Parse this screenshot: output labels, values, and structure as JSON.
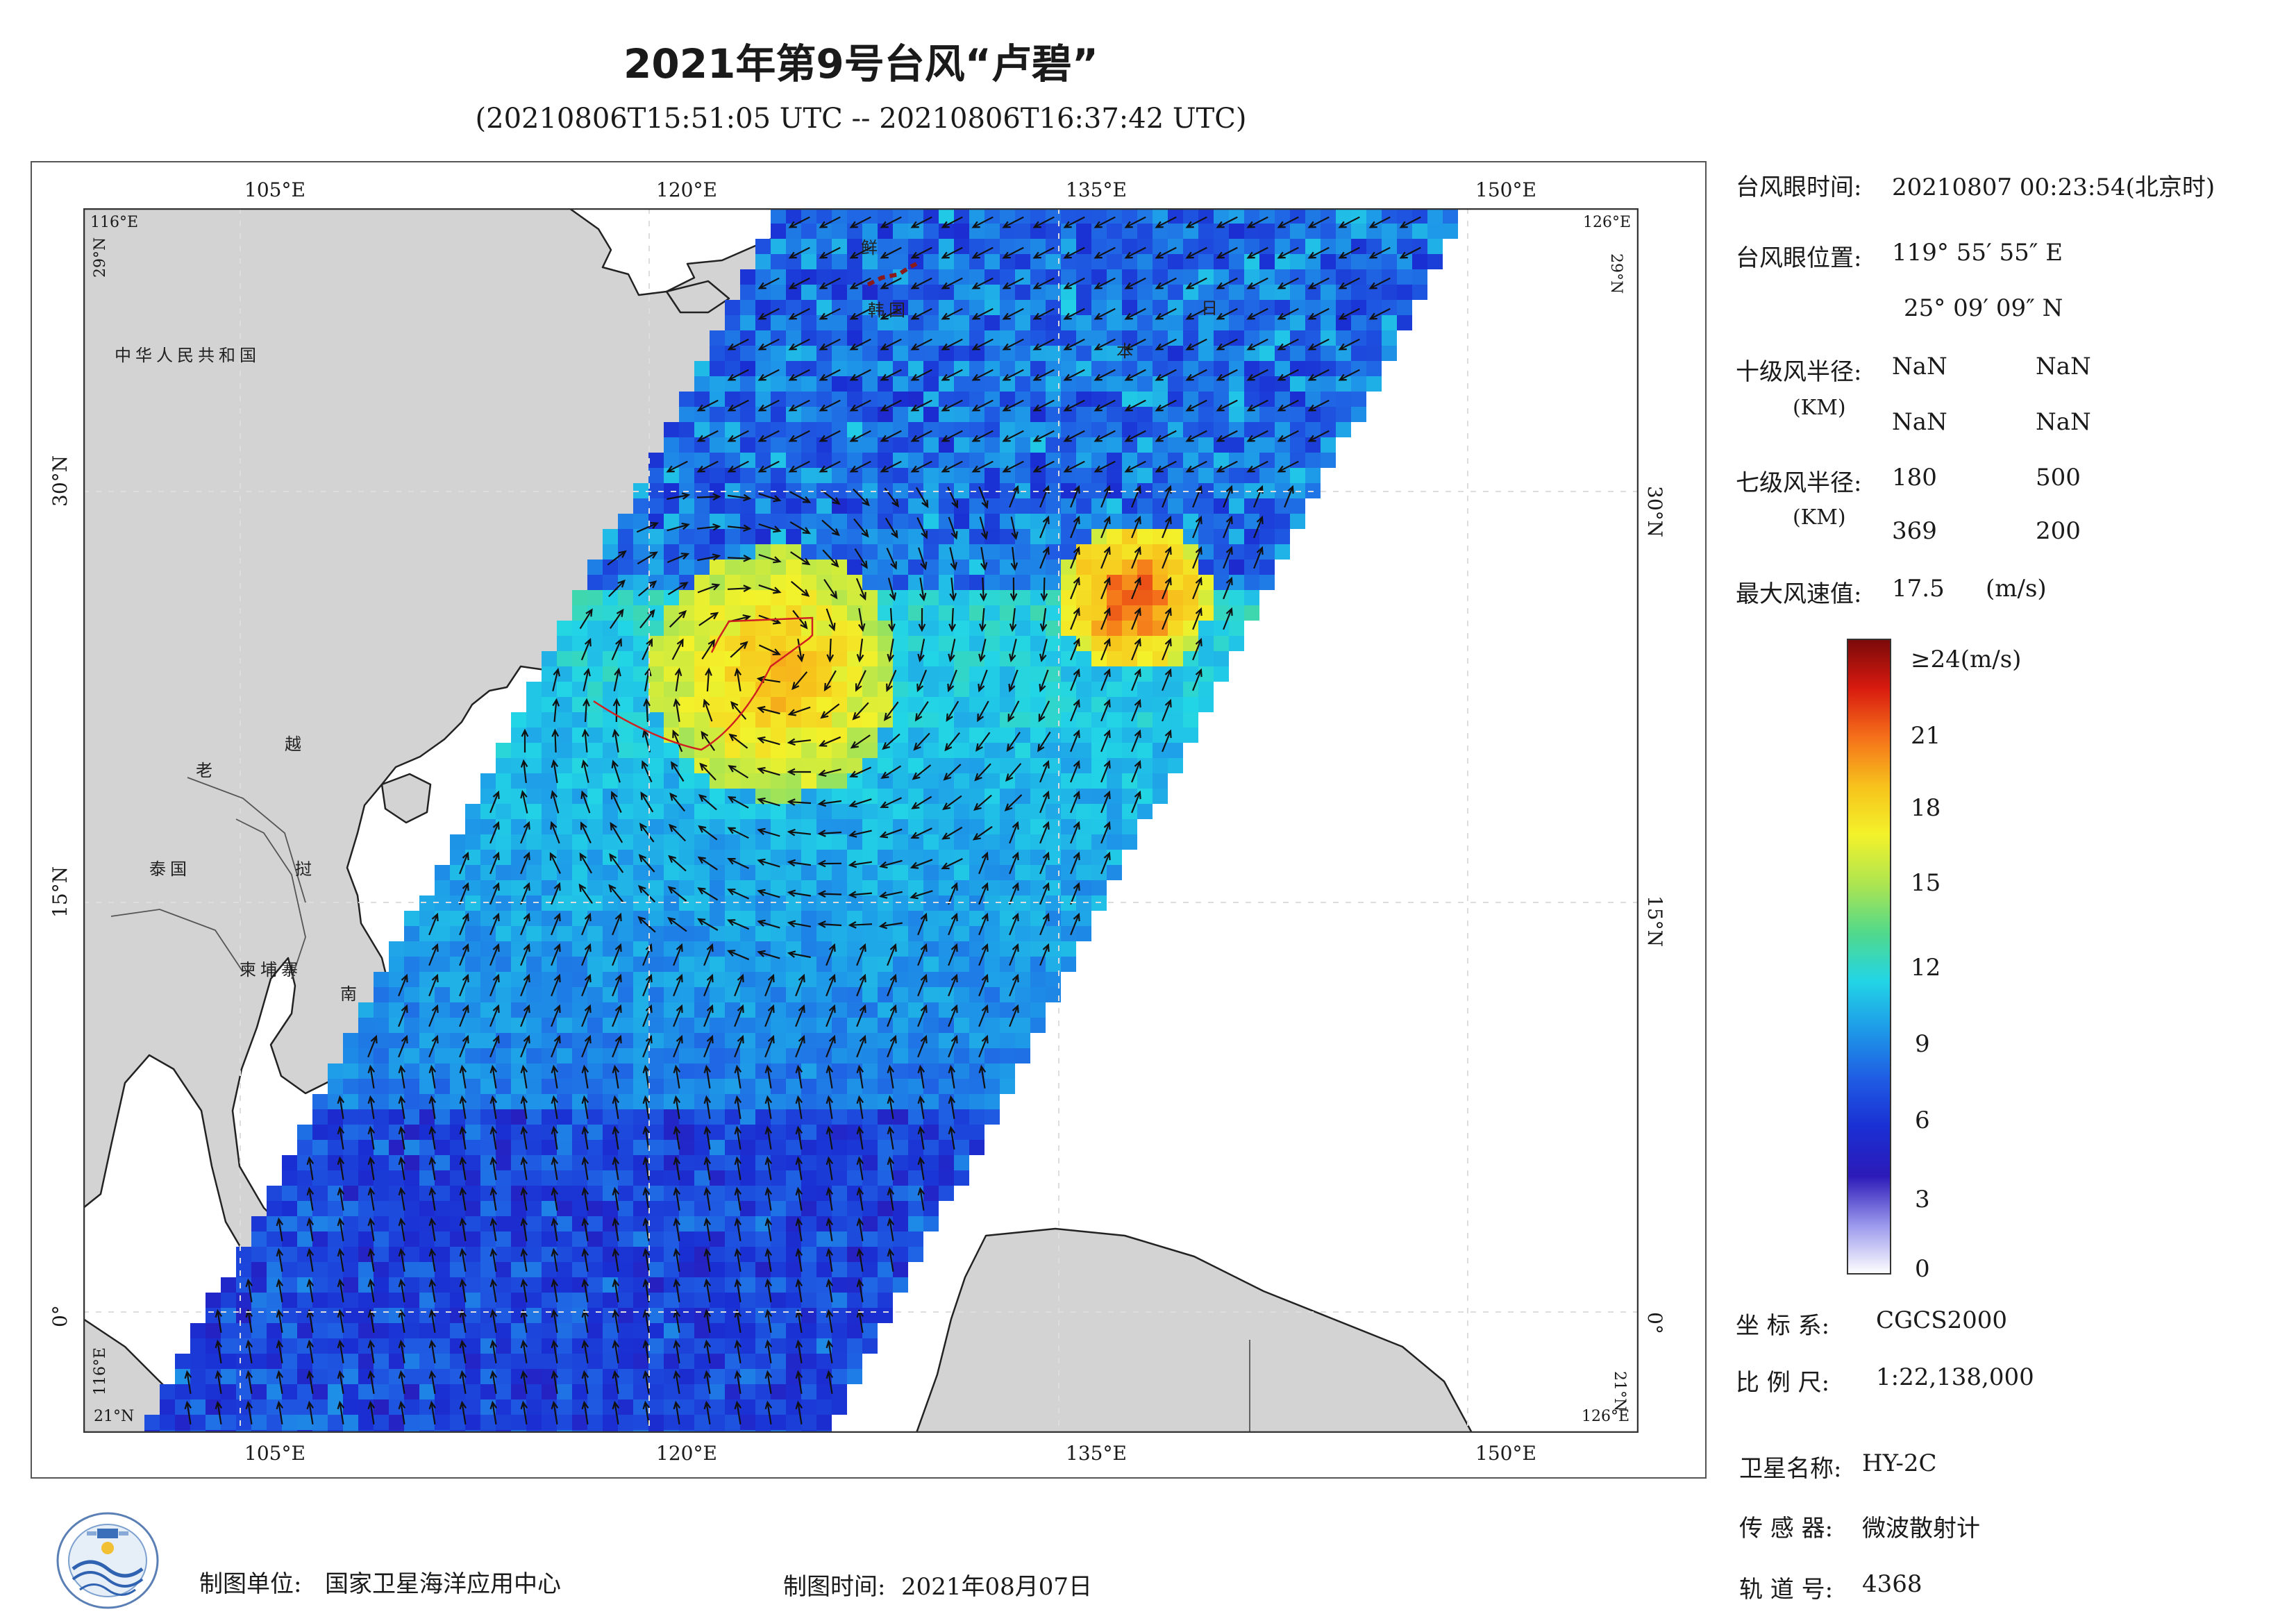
{
  "header": {
    "title": "2021年第9号台风“卢碧”",
    "time_range": "(20210806T15:51:05 UTC -- 20210806T16:37:42 UTC)"
  },
  "map": {
    "lon_ticks": [
      "105°E",
      "120°E",
      "135°E",
      "150°E"
    ],
    "lat_ticks": [
      "30°N",
      "15°N",
      "0°"
    ],
    "corner_labels": [
      "116°E",
      "29°N",
      "126°E",
      "29°N",
      "116°E",
      "21°N",
      "126°E",
      "21°N"
    ],
    "country_labels": [
      "中华人民共和国",
      "鲜",
      "韩国",
      "日",
      "本",
      "老",
      "越",
      "泰国",
      "挝",
      "柬埔寨",
      "南"
    ],
    "land_color": "#d3d3d3",
    "sea_color": "#ffffff",
    "typhoon_box_color": "#d02020"
  },
  "info": {
    "eye_time_label": "台风眼时间:",
    "eye_time_value": "20210807 00:23:54(北京时)",
    "eye_pos_label": "台风眼位置:",
    "eye_pos_lon": "119° 55′ 55″ E",
    "eye_pos_lat": "25° 09′ 09″ N",
    "r10_label": "十级风半径:",
    "km_label": "(KM)",
    "r10_values": [
      "NaN",
      "NaN",
      "NaN",
      "NaN"
    ],
    "r7_label": "七级风半径:",
    "r7_values": [
      "180",
      "500",
      "369",
      "200"
    ],
    "max_wind_label": "最大风速值:",
    "max_wind_value": "17.5",
    "max_wind_unit": "(m/s)"
  },
  "colorbar": {
    "top_label": "≥24(m/s)",
    "ticks": [
      "21",
      "18",
      "15",
      "12",
      "9",
      "6",
      "3",
      "0"
    ],
    "colors": [
      "#7a0a0a",
      "#d81a0f",
      "#f5701a",
      "#f7c21c",
      "#f3f22a",
      "#aee550",
      "#52d98a",
      "#22d5e6",
      "#1e9ae8",
      "#1f5de3",
      "#1a2fd3",
      "#2c1ab8",
      "#9a98ec",
      "#ffffff"
    ]
  },
  "meta": {
    "crs_label": "坐 标 系:",
    "crs_value": "CGCS2000",
    "scale_label": "比 例 尺:",
    "scale_value": "1:22,138,000",
    "sat_label": "卫星名称:",
    "sat_value": "HY-2C",
    "sensor_label": "传 感 器:",
    "sensor_value": "微波散射计",
    "orbit_label": "轨 道 号:",
    "orbit_value": "4368"
  },
  "footer": {
    "unit_label": "制图单位:",
    "unit_value": "国家卫星海洋应用中心",
    "date_label": "制图时间:",
    "date_value": "2021年08月07日"
  }
}
